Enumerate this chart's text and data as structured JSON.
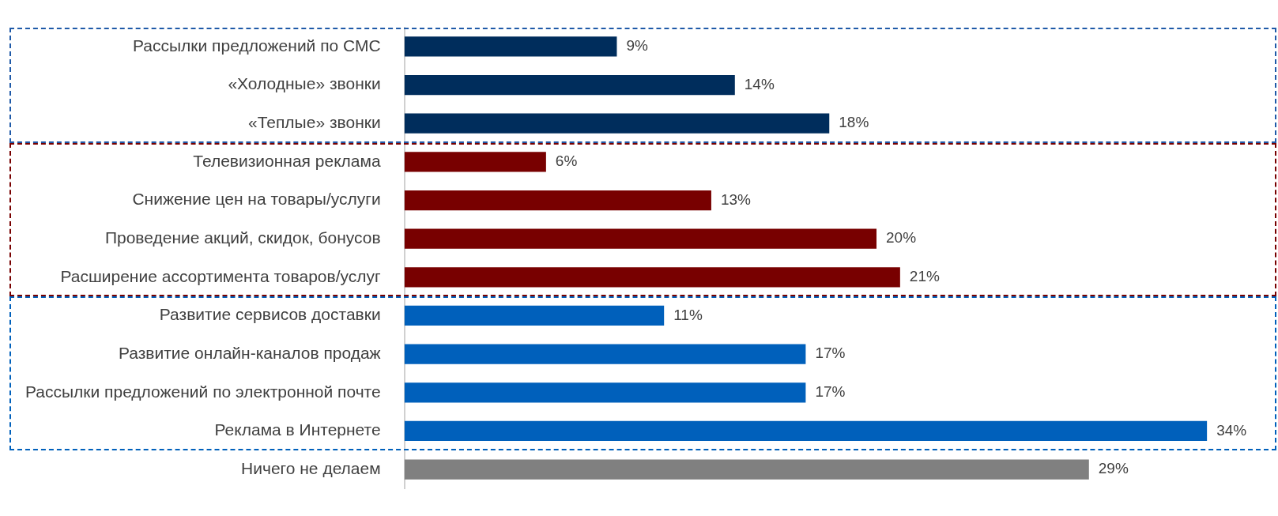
{
  "chart_data": {
    "type": "bar",
    "orientation": "horizontal",
    "categories": [
      "Рассылки предложений по СМС",
      "«Холодные» звонки",
      "«Теплые» звонки",
      "Телевизионная реклама",
      "Снижение цен на товары/услуги",
      "Проведение акций, скидок, бонусов",
      "Расширение ассортимента товаров/услуг",
      "Развитие сервисов доставки",
      "Развитие онлайн-каналов продаж",
      "Рассылки предложений по электронной почте",
      "Реклама в Интернете",
      "Ничего не делаем"
    ],
    "values": [
      9,
      14,
      18,
      6,
      13,
      20,
      21,
      11,
      17,
      17,
      34,
      29
    ],
    "value_labels": [
      "9%",
      "14%",
      "18%",
      "6%",
      "13%",
      "20%",
      "21%",
      "11%",
      "17%",
      "17%",
      "34%",
      "29%"
    ],
    "colors": [
      "#002d5c",
      "#002d5c",
      "#002d5c",
      "#780000",
      "#780000",
      "#780000",
      "#780000",
      "#0060bb",
      "#0060bb",
      "#0060bb",
      "#0060bb",
      "#808080"
    ],
    "grid": false,
    "legend": false
  }
}
